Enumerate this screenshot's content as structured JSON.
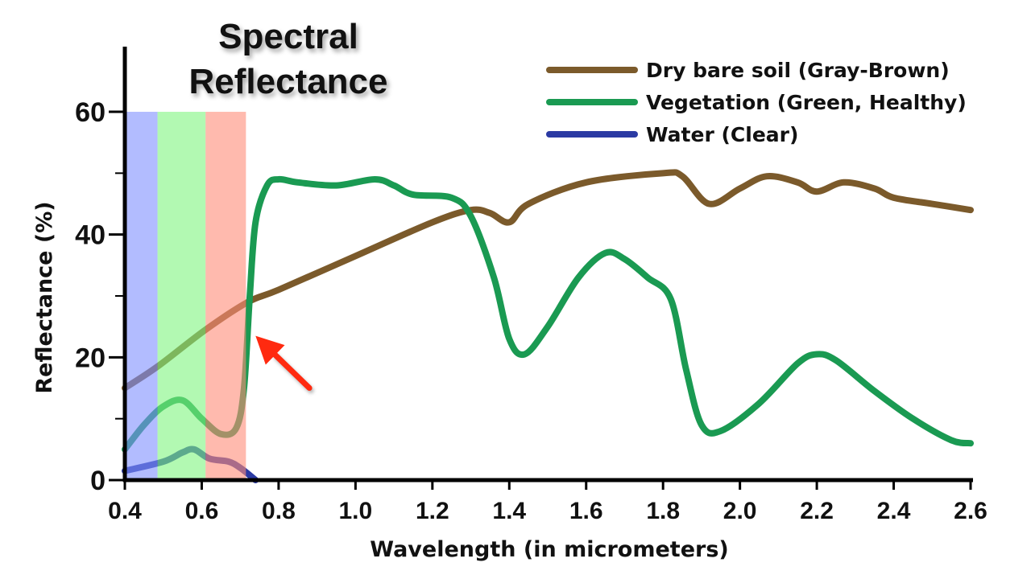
{
  "chart_data": {
    "type": "line",
    "title": "Spectral\nReflectance",
    "title_lines": [
      "Spectral",
      "Reflectance"
    ],
    "xlabel": "Wavelength (in micrometers)",
    "ylabel": "Reflectance (%)",
    "xlim": [
      0.4,
      2.6
    ],
    "ylim": [
      0,
      70
    ],
    "xticks": [
      "0.4",
      "0.6",
      "0.8",
      "1.0",
      "1.2",
      "1.4",
      "1.6",
      "1.8",
      "2.0",
      "2.2",
      "2.4",
      "2.6"
    ],
    "xtick_values": [
      0.4,
      0.6,
      0.8,
      1.0,
      1.2,
      1.4,
      1.6,
      1.8,
      2.0,
      2.2,
      2.4,
      2.6
    ],
    "yticks": [
      "0",
      "20",
      "40",
      "60"
    ],
    "ytick_values": [
      0,
      20,
      40,
      60
    ],
    "yminor_values": [
      10,
      30,
      50
    ],
    "grid": false,
    "legend_position": "top-right",
    "visible_bands": [
      {
        "name": "blue",
        "range": [
          0.4,
          0.485
        ],
        "max": 60,
        "color": "#7f8fff"
      },
      {
        "name": "green",
        "range": [
          0.485,
          0.61
        ],
        "max": 60,
        "color": "#7ff57f"
      },
      {
        "name": "red",
        "range": [
          0.61,
          0.715
        ],
        "max": 60,
        "color": "#ff8c78"
      }
    ],
    "annotation": {
      "type": "arrow",
      "color": "#ff2a10",
      "from": [
        0.88,
        15
      ],
      "to": [
        0.74,
        23.5
      ]
    },
    "series": [
      {
        "name": "Dry bare soil (Gray-Brown)",
        "color": "#7b5a2b",
        "x": [
          0.4,
          0.485,
          0.61,
          0.72,
          0.8,
          1.0,
          1.2,
          1.3,
          1.35,
          1.4,
          1.45,
          1.6,
          1.8,
          1.85,
          1.92,
          2.0,
          2.07,
          2.15,
          2.2,
          2.27,
          2.35,
          2.4,
          2.5,
          2.6
        ],
        "y": [
          15,
          18.5,
          24.5,
          29,
          31,
          36.5,
          42,
          44,
          43.5,
          42,
          45,
          48.5,
          50,
          49.5,
          45,
          47.5,
          49.5,
          48.5,
          47,
          48.5,
          47.5,
          46,
          45,
          44
        ]
      },
      {
        "name": "Vegetation (Green, Healthy)",
        "color": "#1a9a52",
        "x": [
          0.4,
          0.45,
          0.5,
          0.55,
          0.6,
          0.65,
          0.69,
          0.71,
          0.725,
          0.74,
          0.77,
          0.8,
          0.85,
          0.95,
          1.05,
          1.1,
          1.15,
          1.25,
          1.3,
          1.36,
          1.4,
          1.44,
          1.5,
          1.58,
          1.65,
          1.7,
          1.76,
          1.82,
          1.86,
          1.9,
          1.95,
          2.05,
          2.15,
          2.2,
          2.25,
          2.35,
          2.45,
          2.55,
          2.6
        ],
        "y": [
          5,
          9,
          12,
          13,
          10,
          7.5,
          8.5,
          15,
          30,
          42,
          48,
          49,
          48.5,
          48,
          49,
          48,
          46.5,
          46,
          43,
          33,
          23,
          20.5,
          25,
          33,
          37,
          36,
          33,
          29.5,
          18,
          9,
          8,
          12.5,
          19,
          20.5,
          19.5,
          14.5,
          10,
          6.5,
          6
        ]
      },
      {
        "name": "Water (Clear)",
        "color": "#2b3aa3",
        "x": [
          0.4,
          0.5,
          0.55,
          0.58,
          0.62,
          0.67,
          0.7,
          0.74
        ],
        "y": [
          1.5,
          3,
          4.5,
          5,
          3.5,
          3,
          2,
          0
        ]
      }
    ]
  }
}
